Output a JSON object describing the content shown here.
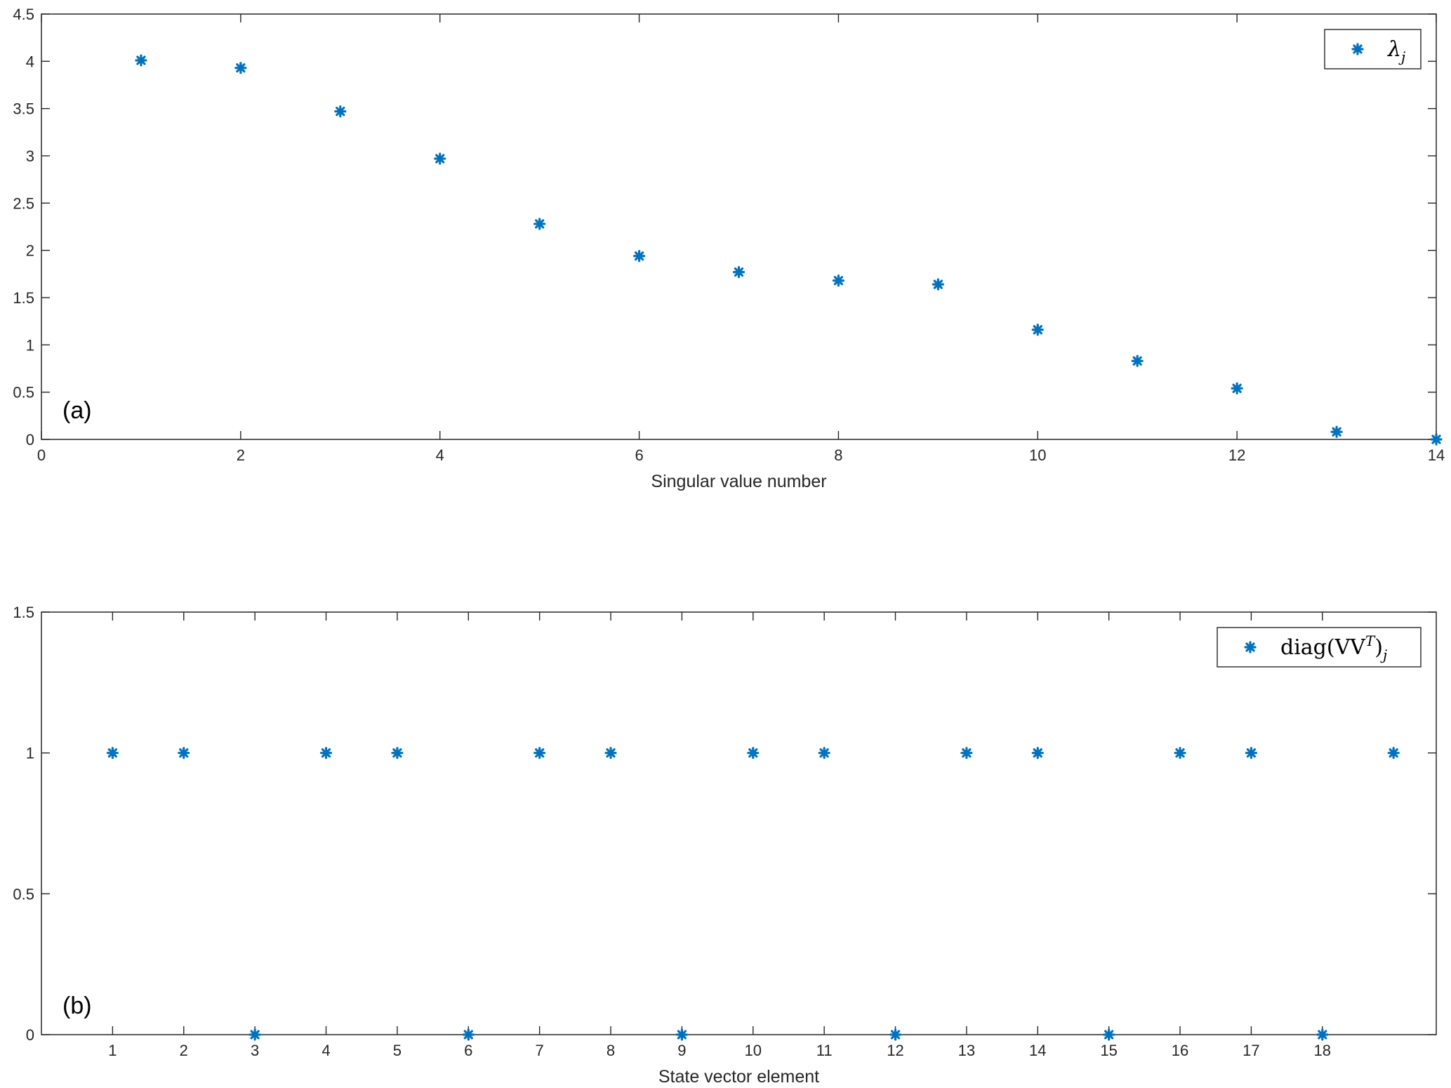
{
  "chart_data": [
    {
      "type": "scatter",
      "panel_label": "(a)",
      "xlabel": "Singular value number",
      "ylabel": "",
      "xlim": [
        0,
        14
      ],
      "ylim": [
        0,
        4.5
      ],
      "xticks": [
        0,
        2,
        4,
        6,
        8,
        10,
        12,
        14
      ],
      "yticks": [
        0,
        0.5,
        1,
        1.5,
        2,
        2.5,
        3,
        3.5,
        4,
        4.5
      ],
      "xtick_labels": [
        "0",
        "2",
        "4",
        "6",
        "8",
        "10",
        "12",
        "14"
      ],
      "ytick_labels": [
        "0",
        "0.5",
        "1",
        "1.5",
        "2",
        "2.5",
        "3",
        "3.5",
        "4",
        "4.5"
      ],
      "legend_position": "top-right",
      "grid": false,
      "series": [
        {
          "name": "λj",
          "legend_base": "λ",
          "legend_sub": "j",
          "marker": "asterisk",
          "color": "#0072BD",
          "x": [
            1,
            2,
            3,
            4,
            5,
            6,
            7,
            8,
            9,
            10,
            11,
            12,
            13,
            14
          ],
          "y": [
            4.01,
            3.93,
            3.47,
            2.97,
            2.28,
            1.94,
            1.77,
            1.68,
            1.64,
            1.16,
            0.83,
            0.54,
            0.08,
            0.0
          ]
        }
      ]
    },
    {
      "type": "scatter",
      "panel_label": "(b)",
      "xlabel": "State vector element",
      "ylabel": "",
      "xlim": [
        0,
        19.6
      ],
      "ylim": [
        0,
        1.5
      ],
      "xticks": [
        1,
        2,
        3,
        4,
        5,
        6,
        7,
        8,
        9,
        10,
        11,
        12,
        13,
        14,
        15,
        16,
        17,
        18
      ],
      "yticks": [
        0,
        0.5,
        1,
        1.5
      ],
      "xtick_labels": [
        "1",
        "2",
        "3",
        "4",
        "5",
        "6",
        "7",
        "8",
        "9",
        "10",
        "11",
        "12",
        "13",
        "14",
        "15",
        "16",
        "17",
        "18"
      ],
      "ytick_labels": [
        "0",
        "0.5",
        "1",
        "1.5"
      ],
      "legend_position": "top-right",
      "grid": false,
      "series": [
        {
          "name": "diag(VVT)j",
          "legend_base": "diag(VV",
          "legend_sup": "T",
          "legend_close": ")",
          "legend_sub": "j",
          "marker": "asterisk",
          "color": "#0072BD",
          "x": [
            1,
            2,
            3,
            4,
            5,
            6,
            7,
            8,
            9,
            10,
            11,
            12,
            13,
            14,
            15,
            16,
            17,
            18,
            19
          ],
          "y": [
            1,
            1,
            0,
            1,
            1,
            0,
            1,
            1,
            0,
            1,
            1,
            0,
            1,
            1,
            0,
            1,
            1,
            0,
            1
          ]
        }
      ]
    }
  ]
}
